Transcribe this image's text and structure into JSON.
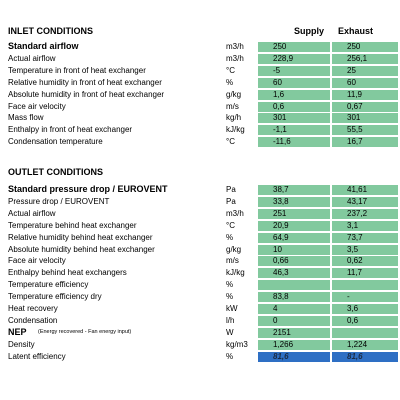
{
  "inlet": {
    "title": "INLET CONDITIONS",
    "headers": [
      "Supply",
      "Exhaust"
    ],
    "rows": [
      {
        "label": "Standard airflow",
        "unit": "m3/h",
        "supply": "250",
        "exhaust": "250"
      },
      {
        "label": "Actual airflow",
        "unit": "m3/h",
        "supply": "228,9",
        "exhaust": "256,1"
      },
      {
        "label": "Temperature in front of heat exchanger",
        "unit": "°C",
        "supply": "-5",
        "exhaust": "25"
      },
      {
        "label": "Relative humidity in front of heat exchanger",
        "unit": "%",
        "supply": "60",
        "exhaust": "60"
      },
      {
        "label": "Absolute humidity in front of heat exchanger",
        "unit": "g/kg",
        "supply": "1,6",
        "exhaust": "11,9"
      },
      {
        "label": "Face air velocity",
        "unit": "m/s",
        "supply": "0,6",
        "exhaust": "0,67"
      },
      {
        "label": "Mass flow",
        "unit": "kg/h",
        "supply": "301",
        "exhaust": "301"
      },
      {
        "label": "Enthalpy in front of heat exchanger",
        "unit": "kJ/kg",
        "supply": "-1,1",
        "exhaust": "55,5"
      },
      {
        "label": "Condensation temperature",
        "unit": "°C",
        "supply": "-11,6",
        "exhaust": "16,7"
      }
    ]
  },
  "outlet": {
    "title": "OUTLET CONDITIONS",
    "rows": [
      {
        "label": "Standard pressure drop  / EUROVENT",
        "unit": "Pa",
        "supply": "38,7",
        "exhaust": "41,61"
      },
      {
        "label": "Pressure drop  / EUROVENT",
        "unit": "Pa",
        "supply": "33,8",
        "exhaust": "43,17"
      },
      {
        "label": "Actual airflow",
        "unit": "m3/h",
        "supply": "251",
        "exhaust": "237,2"
      },
      {
        "label": "Temperature behind heat exchanger",
        "unit": "°C",
        "supply": "20,9",
        "exhaust": "3,1"
      },
      {
        "label": "Relative humidity behind heat exchanger",
        "unit": "%",
        "supply": "64,9",
        "exhaust": "73,7"
      },
      {
        "label": "Absolute humidity behind heat exchanger",
        "unit": "g/kg",
        "supply": "10",
        "exhaust": "3,5"
      },
      {
        "label": "Face air velocity",
        "unit": "m/s",
        "supply": "0,66",
        "exhaust": "0,62"
      },
      {
        "label": "Enthalpy behind heat exchangers",
        "unit": "kJ/kg",
        "supply": "46,3",
        "exhaust": "11,7"
      },
      {
        "label": "Temperature efficiency",
        "unit": "%",
        "supply": null,
        "exhaust": null
      },
      {
        "label": "Temperature efficiency dry",
        "unit": "%",
        "supply": "83,8",
        "exhaust": "-"
      },
      {
        "label": "Heat recovery",
        "unit": "kW",
        "supply": "4",
        "exhaust": "3,6"
      },
      {
        "label": "Condensation",
        "unit": "l/h",
        "supply": "0",
        "exhaust": "0,6"
      },
      {
        "label": "NEP",
        "note": "(Energy recovered - Fan energy input)",
        "unit": "W",
        "supply": "2151",
        "exhaust": null
      },
      {
        "label": "Density",
        "unit": "kg/m3",
        "supply": "1,266",
        "exhaust": "1,224"
      },
      {
        "label": "Latent efficiency",
        "unit": "%",
        "supply": "81,6",
        "exhaust": "81,6"
      }
    ]
  }
}
